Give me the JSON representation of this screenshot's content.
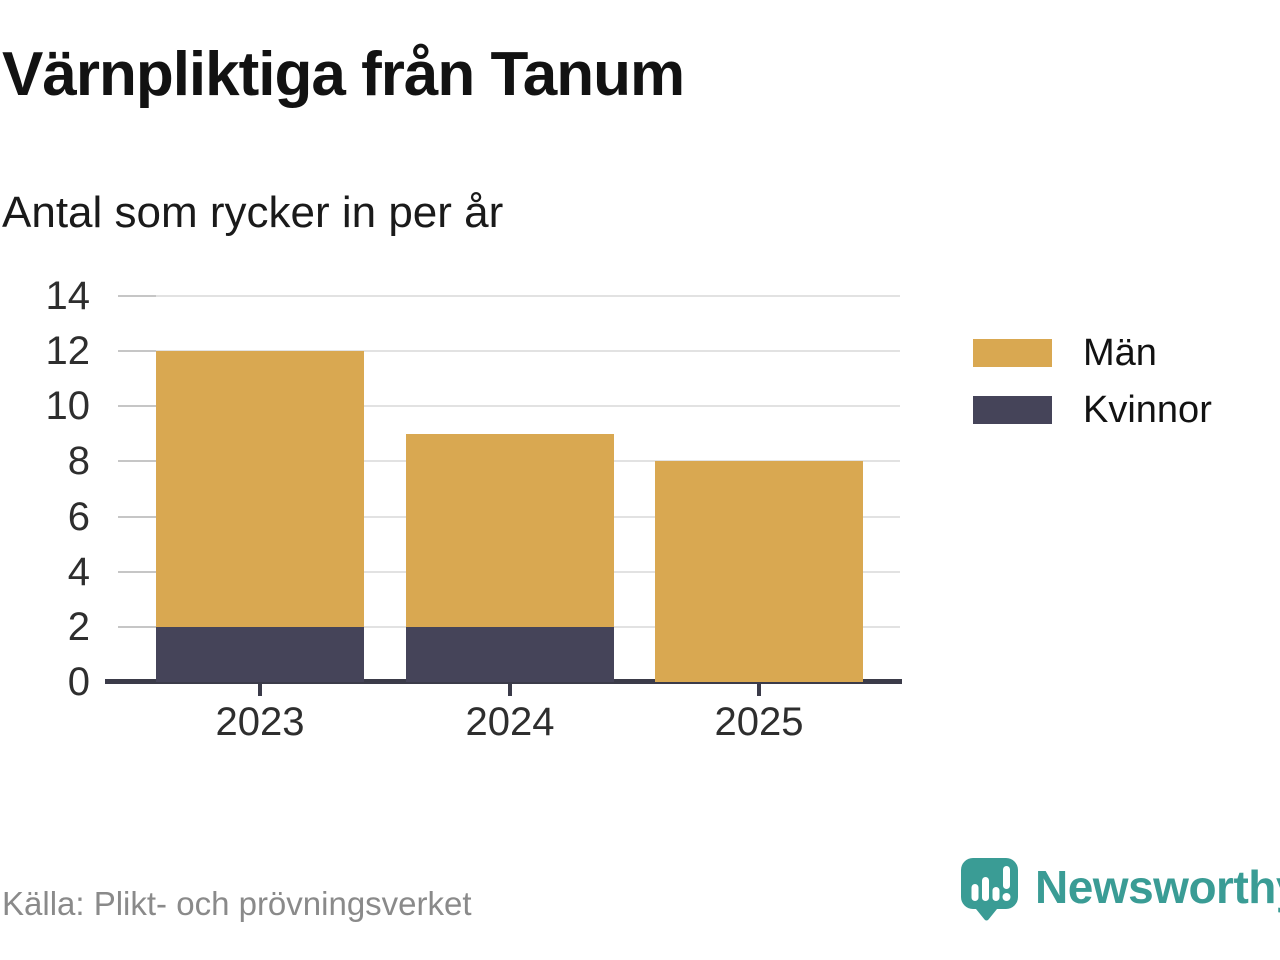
{
  "title": "Värnpliktiga från Tanum",
  "subtitle": "Antal som rycker in per år",
  "source": "Källa: Plikt- och prövningsverket",
  "brand": {
    "name": "Newsworthy",
    "icon": "newsworthy-speech-bubble-chart-icon",
    "color": "#3a9c95"
  },
  "colors": {
    "men": "#d9a851",
    "women": "#454459",
    "axis": "#3b3b49",
    "gridline": "#e2e2e2",
    "title_text": "#121212",
    "source_text": "#8a8a8a"
  },
  "chart_data": {
    "type": "bar",
    "stacked": true,
    "title": "Värnpliktiga från Tanum",
    "subtitle": "Antal som rycker in per år",
    "categories": [
      "2023",
      "2024",
      "2025"
    ],
    "series": [
      {
        "name": "Män",
        "color": "#d9a851",
        "values": [
          10,
          7,
          8
        ]
      },
      {
        "name": "Kvinnor",
        "color": "#454459",
        "values": [
          2,
          2,
          0
        ]
      }
    ],
    "totals": [
      12,
      9,
      8
    ],
    "xlabel": "",
    "ylabel": "",
    "ylim": [
      0,
      14
    ],
    "yticks": [
      0,
      2,
      4,
      6,
      8,
      10,
      12,
      14
    ],
    "grid": true,
    "legend_position": "right-top"
  }
}
